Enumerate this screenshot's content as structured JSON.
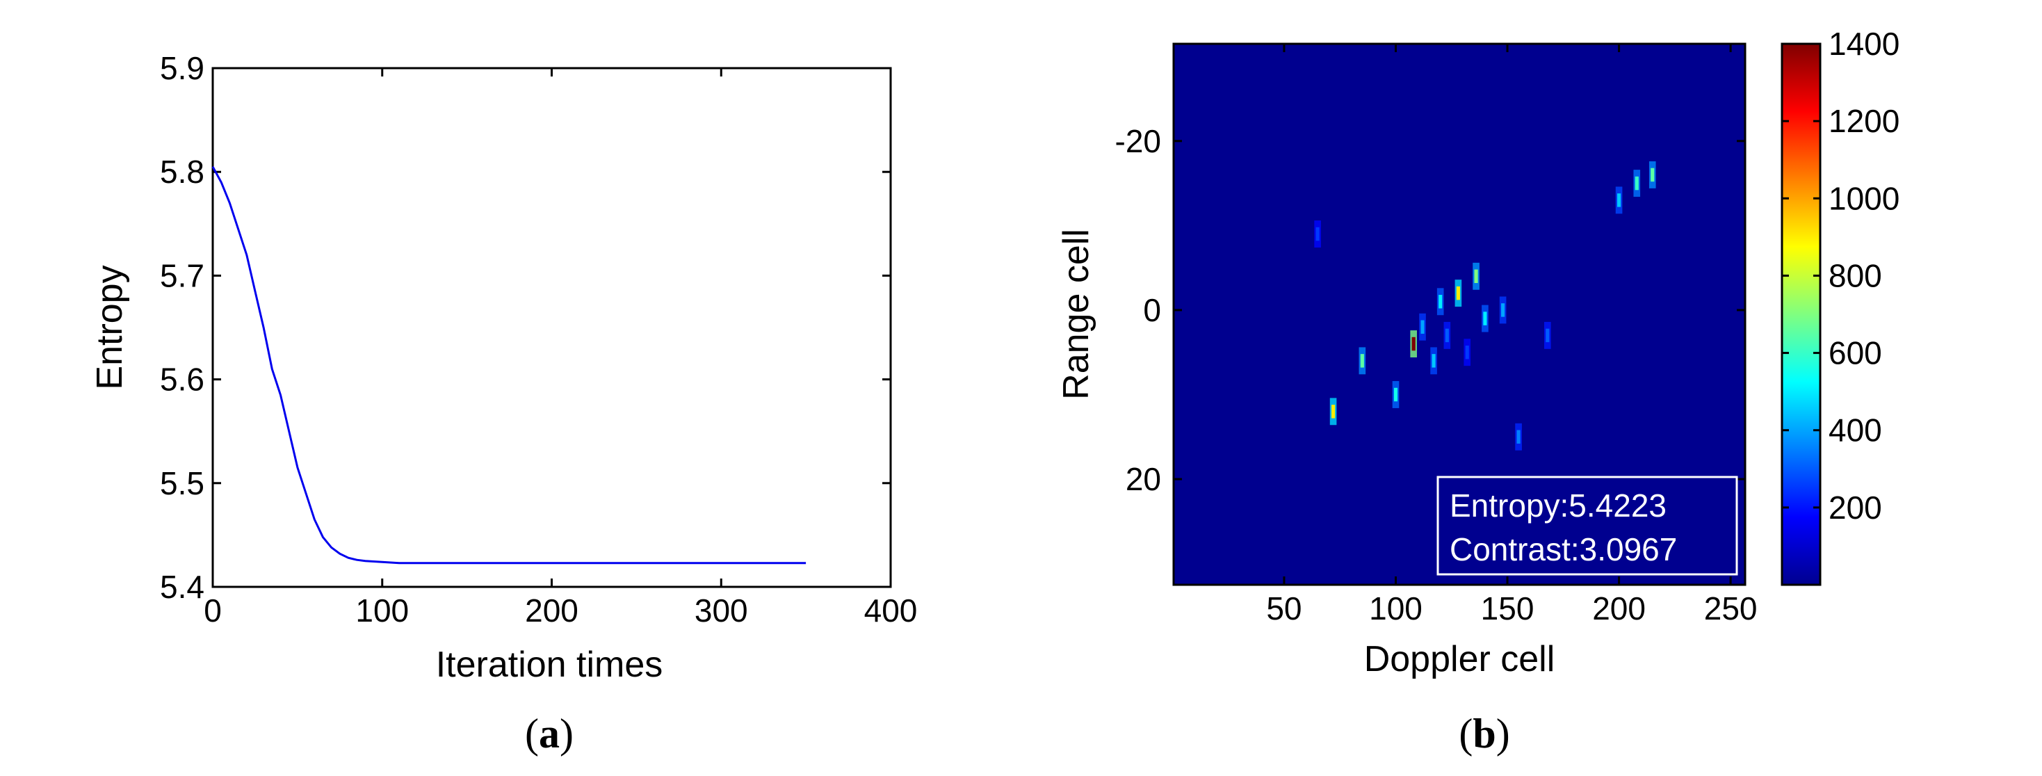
{
  "chart_data": [
    {
      "panel_label": "a",
      "type": "line",
      "xlabel": "Iteration times",
      "ylabel": "Entropy",
      "xlim": [
        0,
        400
      ],
      "ylim": [
        5.4,
        5.9
      ],
      "xticks": [
        "0",
        "100",
        "200",
        "300",
        "400"
      ],
      "yticks": [
        "5.4",
        "5.5",
        "5.6",
        "5.7",
        "5.8",
        "5.9"
      ],
      "grid": false,
      "line_color": "#0000ee",
      "series": [
        {
          "x": [
            0,
            5,
            10,
            15,
            20,
            25,
            30,
            35,
            40,
            45,
            50,
            55,
            60,
            65,
            70,
            75,
            80,
            85,
            90,
            100,
            110,
            150,
            200,
            250,
            300,
            350
          ],
          "values": [
            5.805,
            5.79,
            5.77,
            5.745,
            5.72,
            5.685,
            5.65,
            5.61,
            5.585,
            5.55,
            5.515,
            5.49,
            5.465,
            5.448,
            5.438,
            5.432,
            5.428,
            5.426,
            5.425,
            5.424,
            5.423,
            5.423,
            5.423,
            5.423,
            5.423,
            5.423
          ]
        }
      ]
    },
    {
      "panel_label": "b",
      "type": "heatmap",
      "xlabel": "Doppler cell",
      "ylabel": "Range cell",
      "xlim": [
        1,
        256
      ],
      "ylim": [
        -31,
        32
      ],
      "xticks": [
        "50",
        "100",
        "150",
        "200",
        "250"
      ],
      "yticks": [
        "-20",
        "0",
        "20"
      ],
      "colorbar_ticks": [
        "200",
        "400",
        "600",
        "800",
        "1000",
        "1200",
        "1400"
      ],
      "colorbar_range": [
        0,
        1400
      ],
      "colormap": "jet",
      "background_color": "#00008f",
      "annotation": {
        "entropy": "Entropy:5.4223",
        "contrast": "Contrast:3.0967"
      },
      "points": [
        {
          "x": 108,
          "y": 4,
          "v": 1400
        },
        {
          "x": 72,
          "y": 12,
          "v": 900
        },
        {
          "x": 85,
          "y": 6,
          "v": 650
        },
        {
          "x": 100,
          "y": 10,
          "v": 550
        },
        {
          "x": 128,
          "y": -2,
          "v": 900
        },
        {
          "x": 136,
          "y": -4,
          "v": 700
        },
        {
          "x": 120,
          "y": -1,
          "v": 500
        },
        {
          "x": 140,
          "y": 1,
          "v": 500
        },
        {
          "x": 117,
          "y": 6,
          "v": 450
        },
        {
          "x": 148,
          "y": 0,
          "v": 400
        },
        {
          "x": 215,
          "y": -16,
          "v": 650
        },
        {
          "x": 208,
          "y": -15,
          "v": 600
        },
        {
          "x": 200,
          "y": -13,
          "v": 450
        },
        {
          "x": 155,
          "y": 15,
          "v": 350
        },
        {
          "x": 168,
          "y": 3,
          "v": 300
        },
        {
          "x": 65,
          "y": -9,
          "v": 250
        },
        {
          "x": 112,
          "y": 2,
          "v": 400
        },
        {
          "x": 123,
          "y": 3,
          "v": 300
        },
        {
          "x": 132,
          "y": 5,
          "v": 250
        }
      ]
    }
  ],
  "captions": {
    "a": "a",
    "b": "b"
  }
}
